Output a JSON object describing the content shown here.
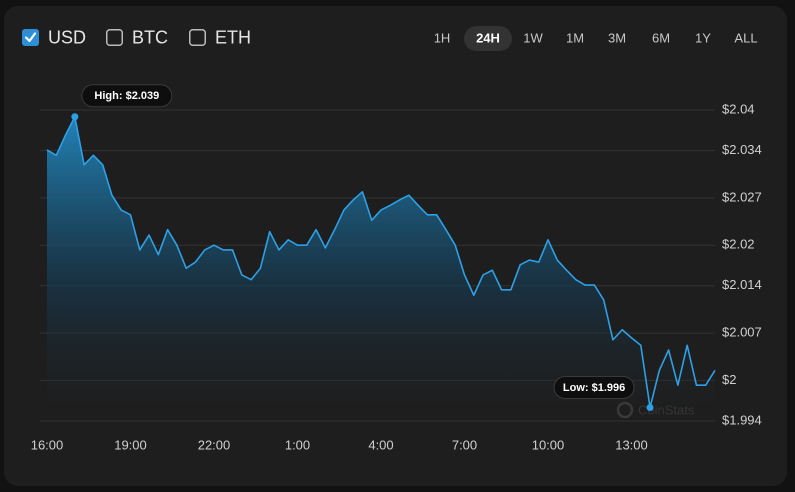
{
  "currency_options": [
    {
      "label": "USD",
      "checked": true
    },
    {
      "label": "BTC",
      "checked": false
    },
    {
      "label": "ETH",
      "checked": false
    }
  ],
  "range_buttons": [
    {
      "label": "1H",
      "active": false
    },
    {
      "label": "24H",
      "active": true
    },
    {
      "label": "1W",
      "active": false
    },
    {
      "label": "1M",
      "active": false
    },
    {
      "label": "3M",
      "active": false
    },
    {
      "label": "6M",
      "active": false
    },
    {
      "label": "1Y",
      "active": false
    },
    {
      "label": "ALL",
      "active": false
    }
  ],
  "chart_data": {
    "type": "area",
    "color": "#2ea0e6",
    "categories": [
      "16:00",
      null,
      null,
      null,
      null,
      null,
      null,
      null,
      null,
      "19:00",
      null,
      null,
      null,
      null,
      null,
      null,
      null,
      null,
      "22:00",
      null,
      null,
      null,
      null,
      null,
      null,
      null,
      null,
      "1:00",
      null,
      null,
      null,
      null,
      null,
      null,
      null,
      null,
      "4:00",
      null,
      null,
      null,
      null,
      null,
      null,
      null,
      null,
      "7:00",
      null,
      null,
      null,
      null,
      null,
      null,
      null,
      null,
      "10:00",
      null,
      null,
      null,
      null,
      null,
      null,
      null,
      null,
      "13:00",
      null,
      null,
      null,
      null,
      null,
      null,
      null,
      null,
      null
    ],
    "values": [
      2.0341,
      2.0333,
      2.0363,
      2.039,
      2.0319,
      2.0333,
      2.0319,
      2.0274,
      2.0252,
      2.0245,
      2.0193,
      2.0215,
      2.0186,
      2.0223,
      2.02,
      2.0166,
      2.0175,
      2.0193,
      2.02,
      2.0193,
      2.0193,
      2.0156,
      2.0149,
      2.0166,
      2.022,
      2.0193,
      2.0208,
      2.02,
      2.02,
      2.0223,
      2.0196,
      2.0223,
      2.0252,
      2.0267,
      2.0279,
      2.0237,
      2.0252,
      2.0259,
      2.0267,
      2.0274,
      2.0259,
      2.0245,
      2.0245,
      2.0223,
      2.02,
      2.0156,
      2.0126,
      2.0156,
      2.0163,
      2.0134,
      2.0134,
      2.0171,
      2.0178,
      2.0175,
      2.0208,
      2.0178,
      2.0163,
      2.0149,
      2.0141,
      2.0141,
      2.0119,
      2.006,
      2.0075,
      2.0063,
      2.0052,
      1.996,
      2.0015,
      2.0045,
      1.9993,
      2.0052,
      1.9993,
      1.9993,
      2.0015
    ],
    "ylim": [
      1.994,
      2.04
    ],
    "yticks": [
      {
        "value": 2.04,
        "label": "$2.04"
      },
      {
        "value": 2.034,
        "label": "$2.034"
      },
      {
        "value": 2.027,
        "label": "$2.027"
      },
      {
        "value": 2.02,
        "label": "$2.02"
      },
      {
        "value": 2.014,
        "label": "$2.014"
      },
      {
        "value": 2.007,
        "label": "$2.007"
      },
      {
        "value": 2,
        "label": "$2"
      },
      {
        "value": 1.994,
        "label": "$1.994"
      }
    ],
    "grid": true,
    "high": {
      "value": 2.039,
      "label": "High: $2.039"
    },
    "low": {
      "value": 1.996,
      "label": "Low: $1.996"
    },
    "watermark": "CoinStats"
  }
}
